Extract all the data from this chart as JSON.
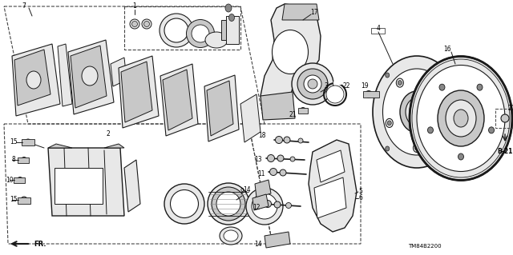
{
  "bg_color": "#ffffff",
  "line_color": "#1a1a1a",
  "gray_light": "#e8e8e8",
  "gray_mid": "#c8c8c8",
  "gray_dark": "#888888",
  "dashed_color": "#444444",
  "label_b21": "B-21",
  "label_fr": "FR.",
  "label_tm": "TM84B2200",
  "fig_width": 6.4,
  "fig_height": 3.19,
  "dpi": 100
}
